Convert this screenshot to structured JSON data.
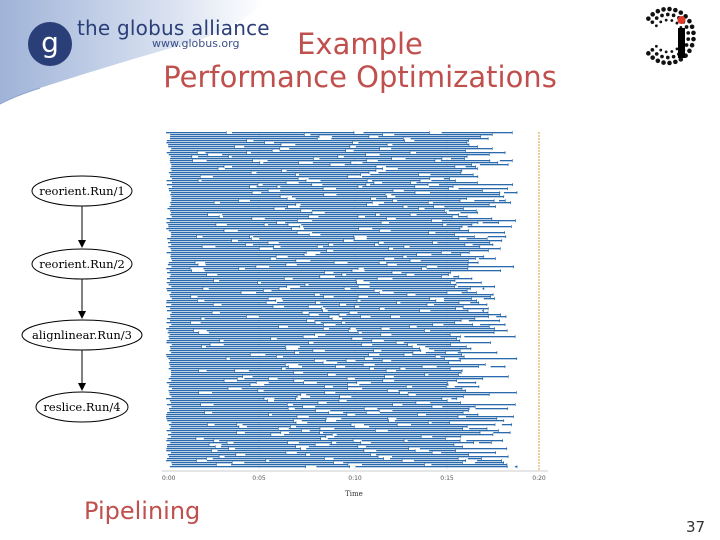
{
  "header": {
    "logo_name": "the globus alliance",
    "logo_url": "www.globus.org",
    "logo_letter": "g",
    "title_line1": "Example",
    "title_line2": "Performance Optimizations",
    "ci_logo_letter": "Ci"
  },
  "workflow": {
    "nodes": [
      "reorient.Run/1",
      "reorient.Run/2",
      "alignlinear.Run/3",
      "reslice.Run/4"
    ]
  },
  "timeline": {
    "x_ticks": [
      "0:00",
      "0:05",
      "0:10",
      "0:15",
      "0:20"
    ],
    "x_label": "Time",
    "bar_color": "#2a6aad",
    "marker_color": "#d4a23a"
  },
  "footer": {
    "caption": "Pipelining",
    "page_number": "37"
  },
  "colors": {
    "title": "#c0504d",
    "logo_blue": "#2a3e78",
    "band_blue": "#b9c8e3"
  }
}
